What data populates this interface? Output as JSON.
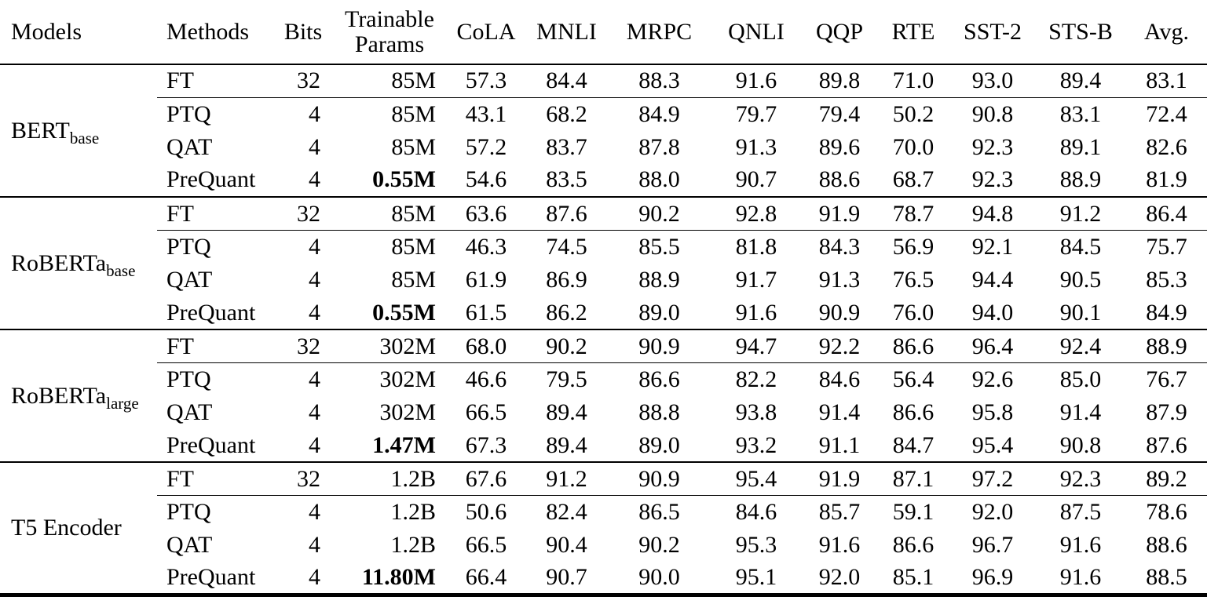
{
  "colors": {
    "background": "#ffffff",
    "text": "#000000",
    "rule": "#000000"
  },
  "table": {
    "headers": {
      "models": "Models",
      "methods": "Methods",
      "bits": "Bits",
      "trainable_line1": "Trainable",
      "trainable_line2": "Params",
      "tasks": [
        "CoLA",
        "MNLI",
        "MRPC",
        "QNLI",
        "QQP",
        "RTE",
        "SST-2",
        "STS-B",
        "Avg."
      ]
    },
    "groups": [
      {
        "model": "BERT",
        "model_subscript": "base",
        "rows": [
          {
            "method": "FT",
            "bits": "32",
            "params": "85M",
            "params_bold": false,
            "scores": [
              "57.3",
              "84.4",
              "88.3",
              "91.6",
              "89.8",
              "71.0",
              "93.0",
              "89.4",
              "83.1"
            ]
          },
          {
            "method": "PTQ",
            "bits": "4",
            "params": "85M",
            "params_bold": false,
            "scores": [
              "43.1",
              "68.2",
              "84.9",
              "79.7",
              "79.4",
              "50.2",
              "90.8",
              "83.1",
              "72.4"
            ]
          },
          {
            "method": "QAT",
            "bits": "4",
            "params": "85M",
            "params_bold": false,
            "scores": [
              "57.2",
              "83.7",
              "87.8",
              "91.3",
              "89.6",
              "70.0",
              "92.3",
              "89.1",
              "82.6"
            ]
          },
          {
            "method": "PreQuant",
            "bits": "4",
            "params": "0.55M",
            "params_bold": true,
            "scores": [
              "54.6",
              "83.5",
              "88.0",
              "90.7",
              "88.6",
              "68.7",
              "92.3",
              "88.9",
              "81.9"
            ]
          }
        ]
      },
      {
        "model": "RoBERTa",
        "model_subscript": "base",
        "rows": [
          {
            "method": "FT",
            "bits": "32",
            "params": "85M",
            "params_bold": false,
            "scores": [
              "63.6",
              "87.6",
              "90.2",
              "92.8",
              "91.9",
              "78.7",
              "94.8",
              "91.2",
              "86.4"
            ]
          },
          {
            "method": "PTQ",
            "bits": "4",
            "params": "85M",
            "params_bold": false,
            "scores": [
              "46.3",
              "74.5",
              "85.5",
              "81.8",
              "84.3",
              "56.9",
              "92.1",
              "84.5",
              "75.7"
            ]
          },
          {
            "method": "QAT",
            "bits": "4",
            "params": "85M",
            "params_bold": false,
            "scores": [
              "61.9",
              "86.9",
              "88.9",
              "91.7",
              "91.3",
              "76.5",
              "94.4",
              "90.5",
              "85.3"
            ]
          },
          {
            "method": "PreQuant",
            "bits": "4",
            "params": "0.55M",
            "params_bold": true,
            "scores": [
              "61.5",
              "86.2",
              "89.0",
              "91.6",
              "90.9",
              "76.0",
              "94.0",
              "90.1",
              "84.9"
            ]
          }
        ]
      },
      {
        "model": "RoBERTa",
        "model_subscript": "large",
        "rows": [
          {
            "method": "FT",
            "bits": "32",
            "params": "302M",
            "params_bold": false,
            "scores": [
              "68.0",
              "90.2",
              "90.9",
              "94.7",
              "92.2",
              "86.6",
              "96.4",
              "92.4",
              "88.9"
            ]
          },
          {
            "method": "PTQ",
            "bits": "4",
            "params": "302M",
            "params_bold": false,
            "scores": [
              "46.6",
              "79.5",
              "86.6",
              "82.2",
              "84.6",
              "56.4",
              "92.6",
              "85.0",
              "76.7"
            ]
          },
          {
            "method": "QAT",
            "bits": "4",
            "params": "302M",
            "params_bold": false,
            "scores": [
              "66.5",
              "89.4",
              "88.8",
              "93.8",
              "91.4",
              "86.6",
              "95.8",
              "91.4",
              "87.9"
            ]
          },
          {
            "method": "PreQuant",
            "bits": "4",
            "params": "1.47M",
            "params_bold": true,
            "scores": [
              "67.3",
              "89.4",
              "89.0",
              "93.2",
              "91.1",
              "84.7",
              "95.4",
              "90.8",
              "87.6"
            ]
          }
        ]
      },
      {
        "model": "T5 Encoder",
        "model_subscript": "",
        "rows": [
          {
            "method": "FT",
            "bits": "32",
            "params": "1.2B",
            "params_bold": false,
            "scores": [
              "67.6",
              "91.2",
              "90.9",
              "95.4",
              "91.9",
              "87.1",
              "97.2",
              "92.3",
              "89.2"
            ]
          },
          {
            "method": "PTQ",
            "bits": "4",
            "params": "1.2B",
            "params_bold": false,
            "scores": [
              "50.6",
              "82.4",
              "86.5",
              "84.6",
              "85.7",
              "59.1",
              "92.0",
              "87.5",
              "78.6"
            ]
          },
          {
            "method": "QAT",
            "bits": "4",
            "params": "1.2B",
            "params_bold": false,
            "scores": [
              "66.5",
              "90.4",
              "90.2",
              "95.3",
              "91.6",
              "86.6",
              "96.7",
              "91.6",
              "88.6"
            ]
          },
          {
            "method": "PreQuant",
            "bits": "4",
            "params": "11.80M",
            "params_bold": true,
            "scores": [
              "66.4",
              "90.7",
              "90.0",
              "95.1",
              "92.0",
              "85.1",
              "96.9",
              "91.6",
              "88.5"
            ]
          }
        ]
      }
    ]
  }
}
